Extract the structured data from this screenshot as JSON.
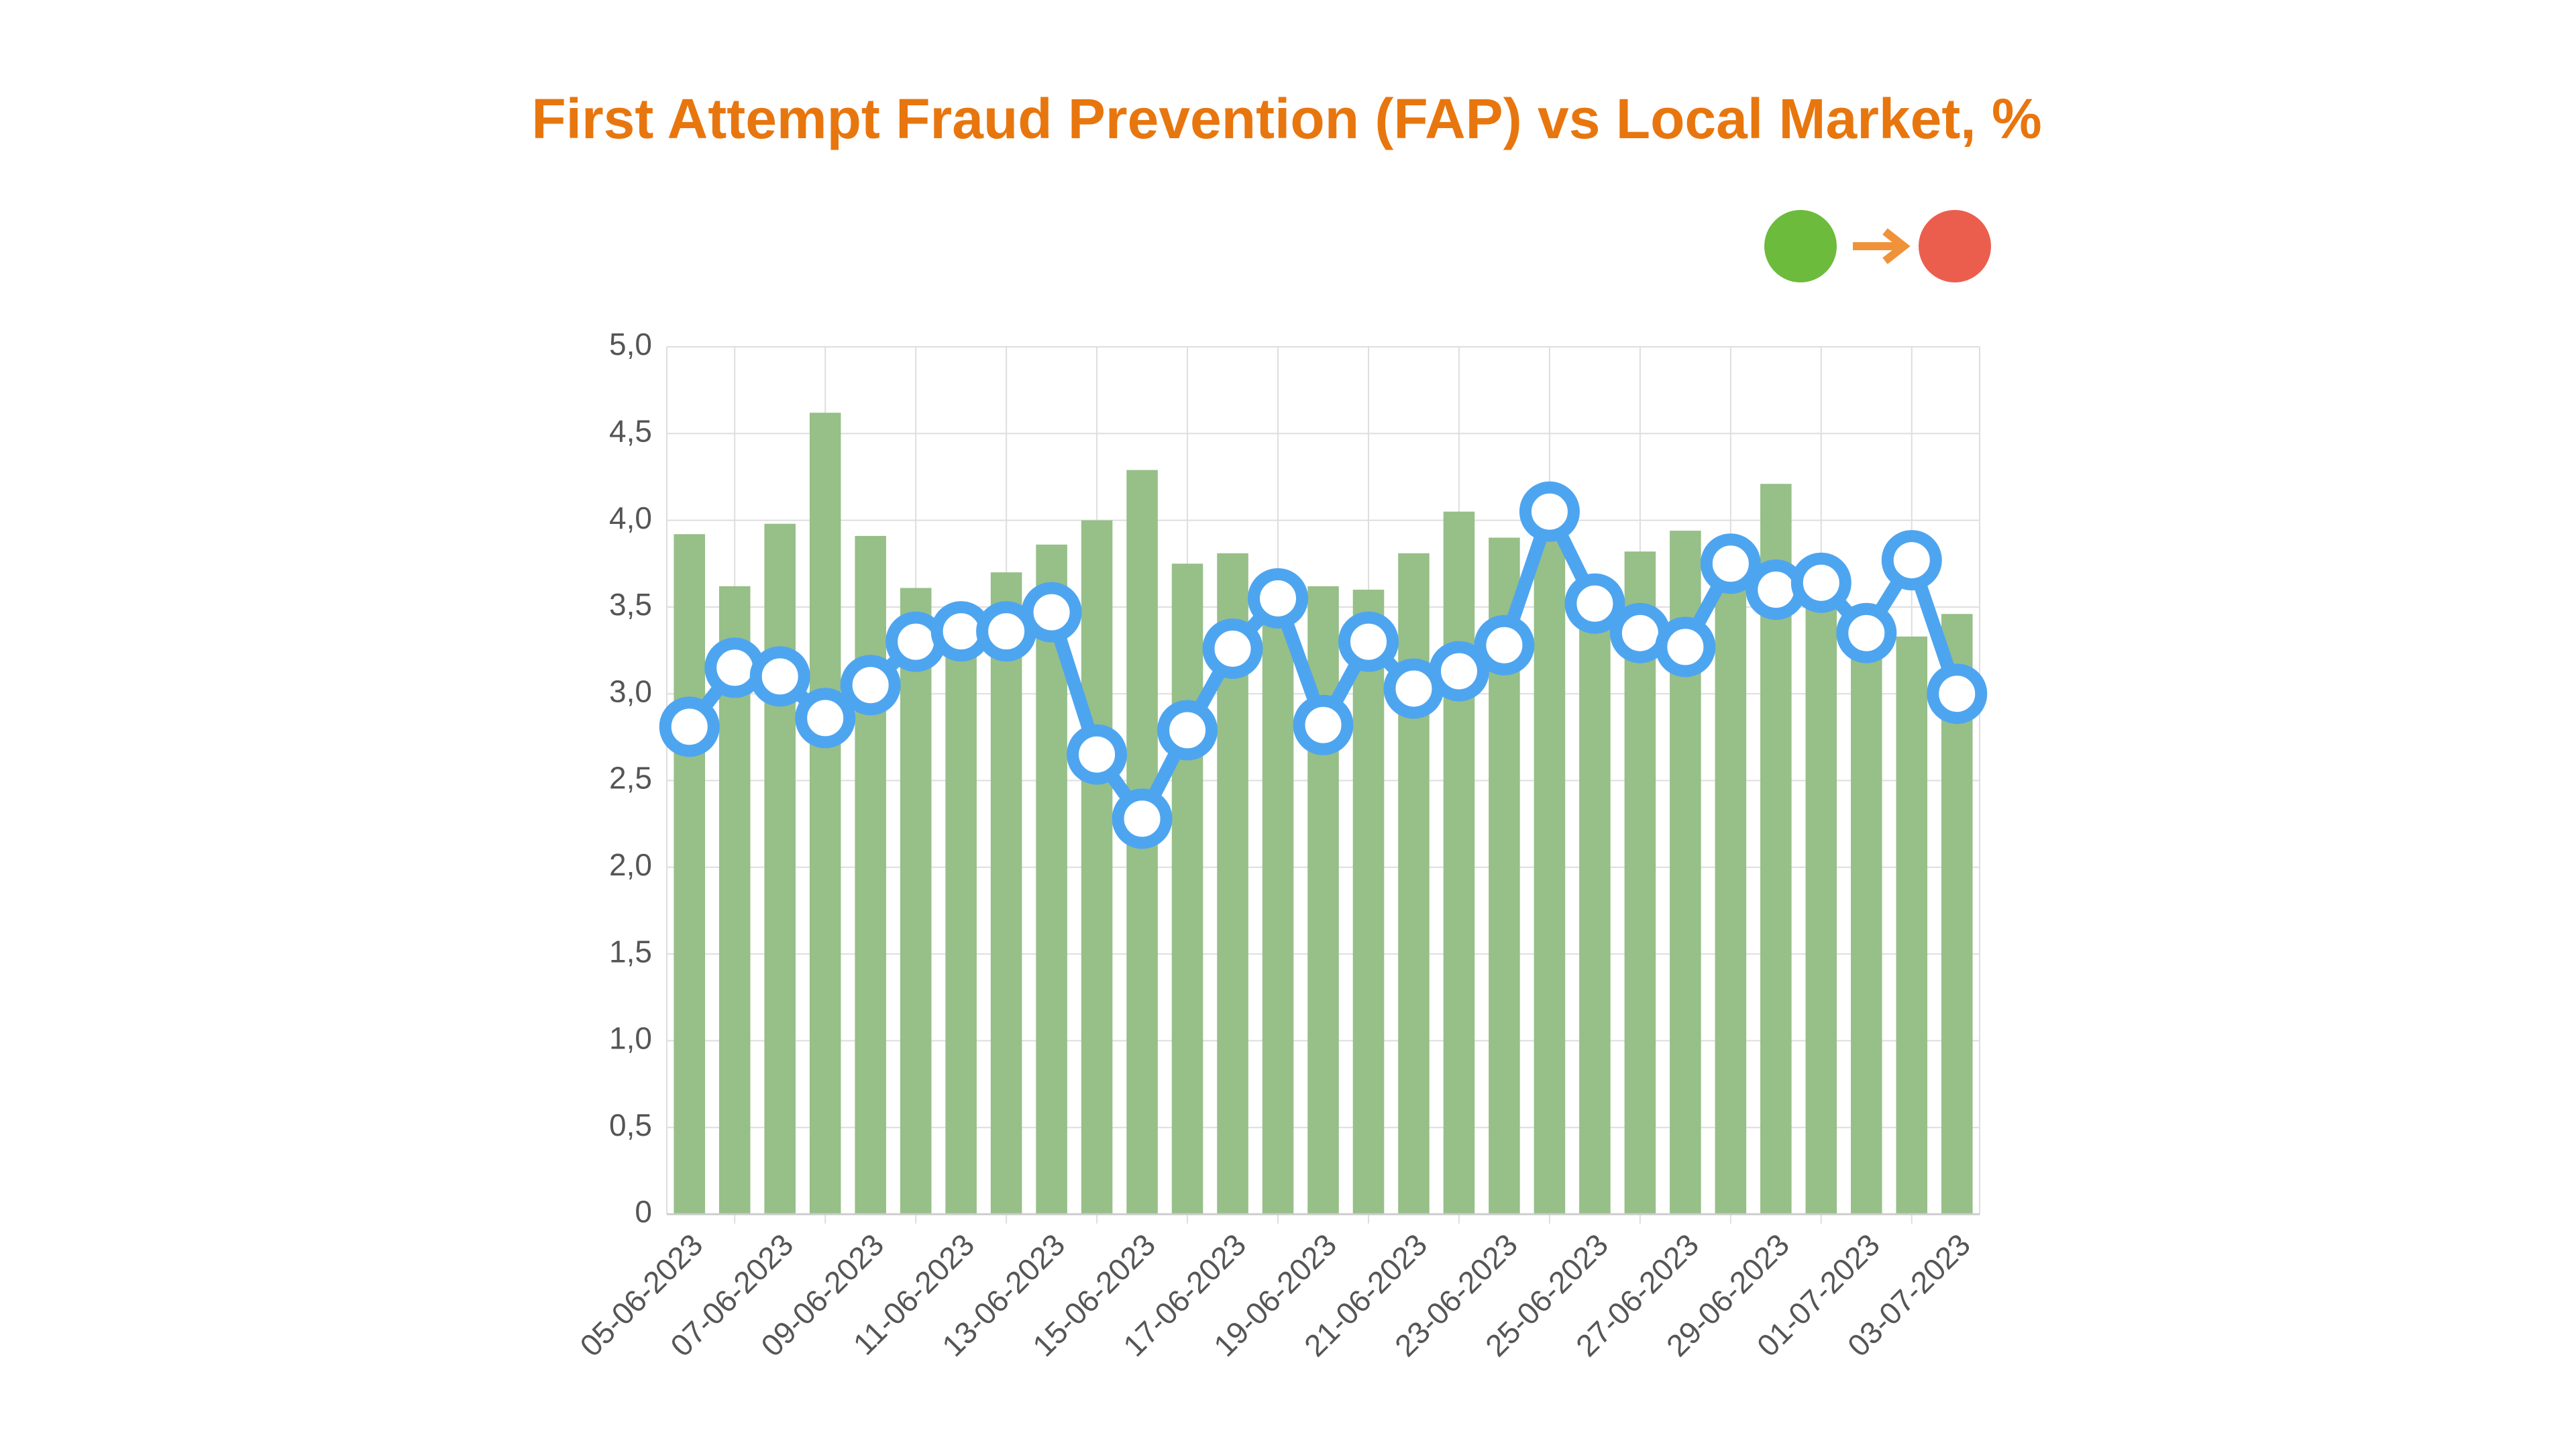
{
  "chart_data": {
    "type": "bar",
    "title": "First Attempt Fraud Prevention (FAP) vs Local Market, %",
    "categories": [
      "05-06-2023",
      null,
      "07-06-2023",
      null,
      "09-06-2023",
      null,
      "11-06-2023",
      null,
      "13-06-2023",
      null,
      "15-06-2023",
      null,
      "17-06-2023",
      null,
      "19-06-2023",
      null,
      "21-06-2023",
      null,
      "23-06-2023",
      null,
      "25-06-2023",
      null,
      "27-06-2023",
      null,
      "29-06-2023",
      null,
      "01-07-2023",
      null,
      "03-07-2023"
    ],
    "series": [
      {
        "type": "bar",
        "color": "#97bf88",
        "values": [
          3.92,
          3.62,
          3.98,
          4.62,
          3.91,
          3.61,
          3.5,
          3.7,
          3.86,
          4.0,
          4.29,
          3.75,
          3.81,
          3.6,
          3.62,
          3.6,
          3.81,
          4.05,
          3.9,
          3.9,
          3.6,
          3.82,
          3.94,
          3.9,
          4.21,
          3.6,
          3.5,
          3.33,
          3.46
        ]
      },
      {
        "type": "line",
        "color": "#4ea5ef",
        "values": [
          2.81,
          3.15,
          3.1,
          2.86,
          3.05,
          3.3,
          3.36,
          3.36,
          3.47,
          2.65,
          2.28,
          2.79,
          3.26,
          3.55,
          2.82,
          3.3,
          3.03,
          3.13,
          3.28,
          4.05,
          3.52,
          3.35,
          3.27,
          3.75,
          3.6,
          3.64,
          3.35,
          3.77,
          3.0
        ]
      }
    ],
    "ylim": [
      0,
      5
    ],
    "yticks": [
      0,
      {
        "value": 0.5,
        "label": "0,5"
      },
      {
        "value": 1,
        "label": "1,0"
      },
      {
        "value": 1.5,
        "label": "1,5"
      },
      {
        "value": 2,
        "label": "2,0"
      },
      {
        "value": 2.5,
        "label": "2,5"
      },
      {
        "value": 3,
        "label": "3,0"
      },
      {
        "value": 3.5,
        "label": "3,5"
      },
      {
        "value": 4,
        "label": "4,0"
      },
      {
        "value": 4.5,
        "label": "4,5"
      },
      {
        "value": 5,
        "label": "5,0"
      }
    ],
    "grid": true
  }
}
